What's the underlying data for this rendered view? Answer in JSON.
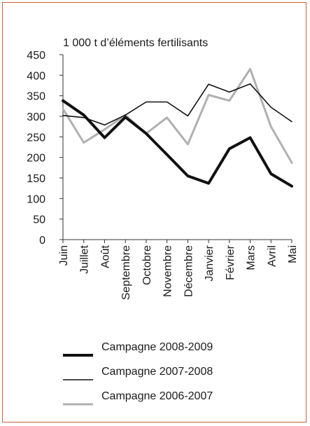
{
  "chart_data": {
    "type": "line",
    "title": "",
    "unit_label": "1 000 t d’éléments fertilisants",
    "xlabel": "",
    "ylabel": "",
    "ylim": [
      0,
      450
    ],
    "yticks": [
      0,
      50,
      100,
      150,
      200,
      250,
      300,
      350,
      400,
      450
    ],
    "grid": false,
    "legend_placement": "bottom",
    "categories": [
      "Juin",
      "Juillet",
      "Août",
      "Septembre",
      "Octobre",
      "Novembre",
      "Décembre",
      "Janvier",
      "Février",
      "Mars",
      "Avril",
      "Mai"
    ],
    "series": [
      {
        "name": "Campagne 2008-2009",
        "color": "#111111",
        "style": "thick",
        "values": [
          338,
          303,
          248,
          298,
          258,
          207,
          155,
          137,
          221,
          248,
          160,
          130
        ]
      },
      {
        "name": "Campagne 2007-2008",
        "color": "#111111",
        "style": "thin",
        "values": [
          302,
          297,
          279,
          303,
          335,
          335,
          301,
          378,
          359,
          379,
          322,
          287
        ]
      },
      {
        "name": "Campagne 2006-2007",
        "color": "#b0b0b0",
        "style": "medium",
        "values": [
          318,
          236,
          268,
          303,
          258,
          297,
          232,
          352,
          338,
          415,
          275,
          187
        ]
      }
    ]
  }
}
